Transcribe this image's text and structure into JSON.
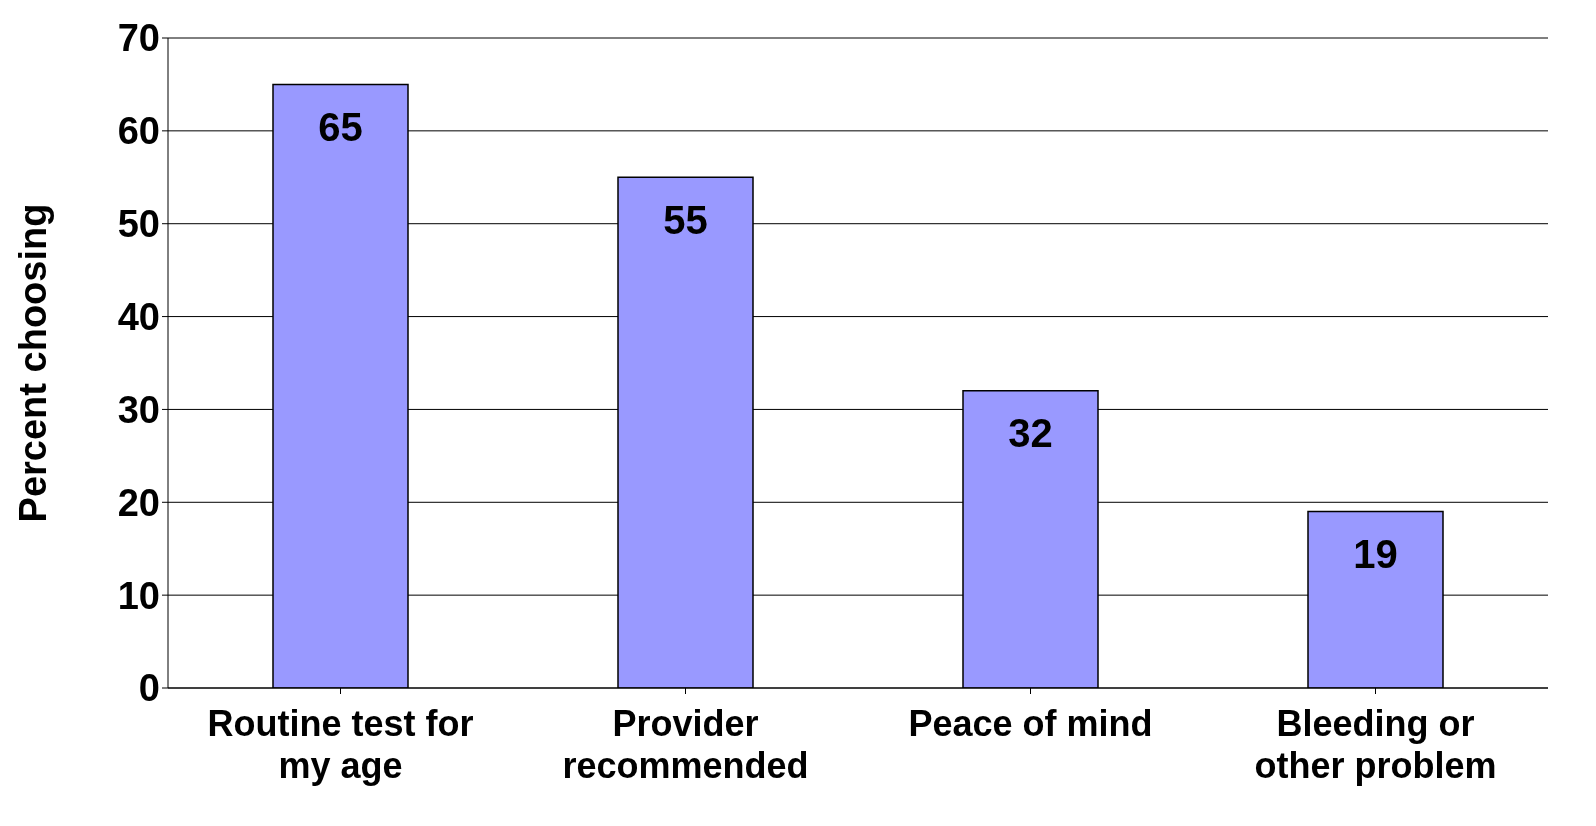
{
  "chart_data": {
    "type": "bar",
    "ylabel": "Percent choosing",
    "categories": [
      "Routine test for my age",
      "Provider recommended",
      "Peace of mind",
      "Bleeding or other problem"
    ],
    "values": [
      65,
      55,
      32,
      19
    ],
    "color": "#9999ff",
    "ylim": [
      0,
      70
    ],
    "yticks": [
      0,
      10,
      20,
      30,
      40,
      50,
      60,
      70
    ],
    "grid": "y",
    "data_labels": true
  }
}
